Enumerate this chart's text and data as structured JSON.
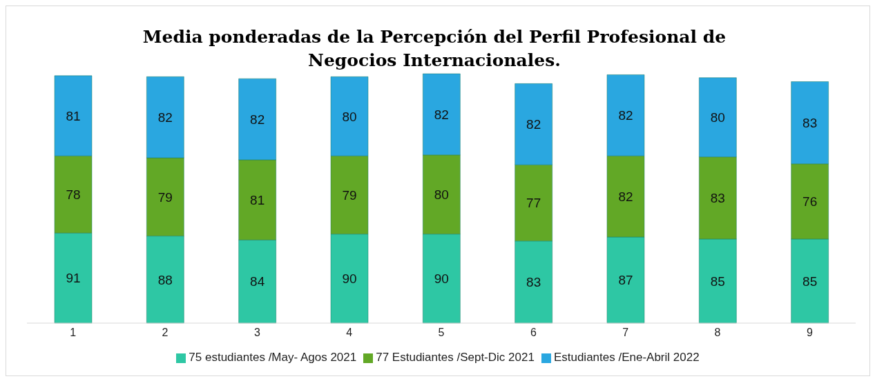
{
  "chart_data": {
    "type": "bar",
    "title": "Media ponderadas de la Percepción del Perfil Profesional de Negocios Internacionales.",
    "categories": [
      "1",
      "2",
      "3",
      "4",
      "5",
      "6",
      "7",
      "8",
      "9"
    ],
    "stacked": true,
    "data_labels": true,
    "legend": "bottom",
    "grid": false,
    "series": [
      {
        "name": "75 estudiantes /May- Agos 2021",
        "color": "#2ec7a4",
        "values": [
          91,
          88,
          84,
          90,
          90,
          83,
          87,
          85,
          85
        ]
      },
      {
        "name": "77 Estudiantes  /Sept-Dic 2021",
        "color": "#62a826",
        "values": [
          78,
          79,
          81,
          79,
          80,
          77,
          82,
          83,
          76
        ]
      },
      {
        "name": "Estudiantes  /Ene-Abril  2022",
        "color": "#2aa7e0",
        "values": [
          81,
          82,
          82,
          80,
          82,
          82,
          82,
          80,
          83
        ]
      }
    ]
  }
}
